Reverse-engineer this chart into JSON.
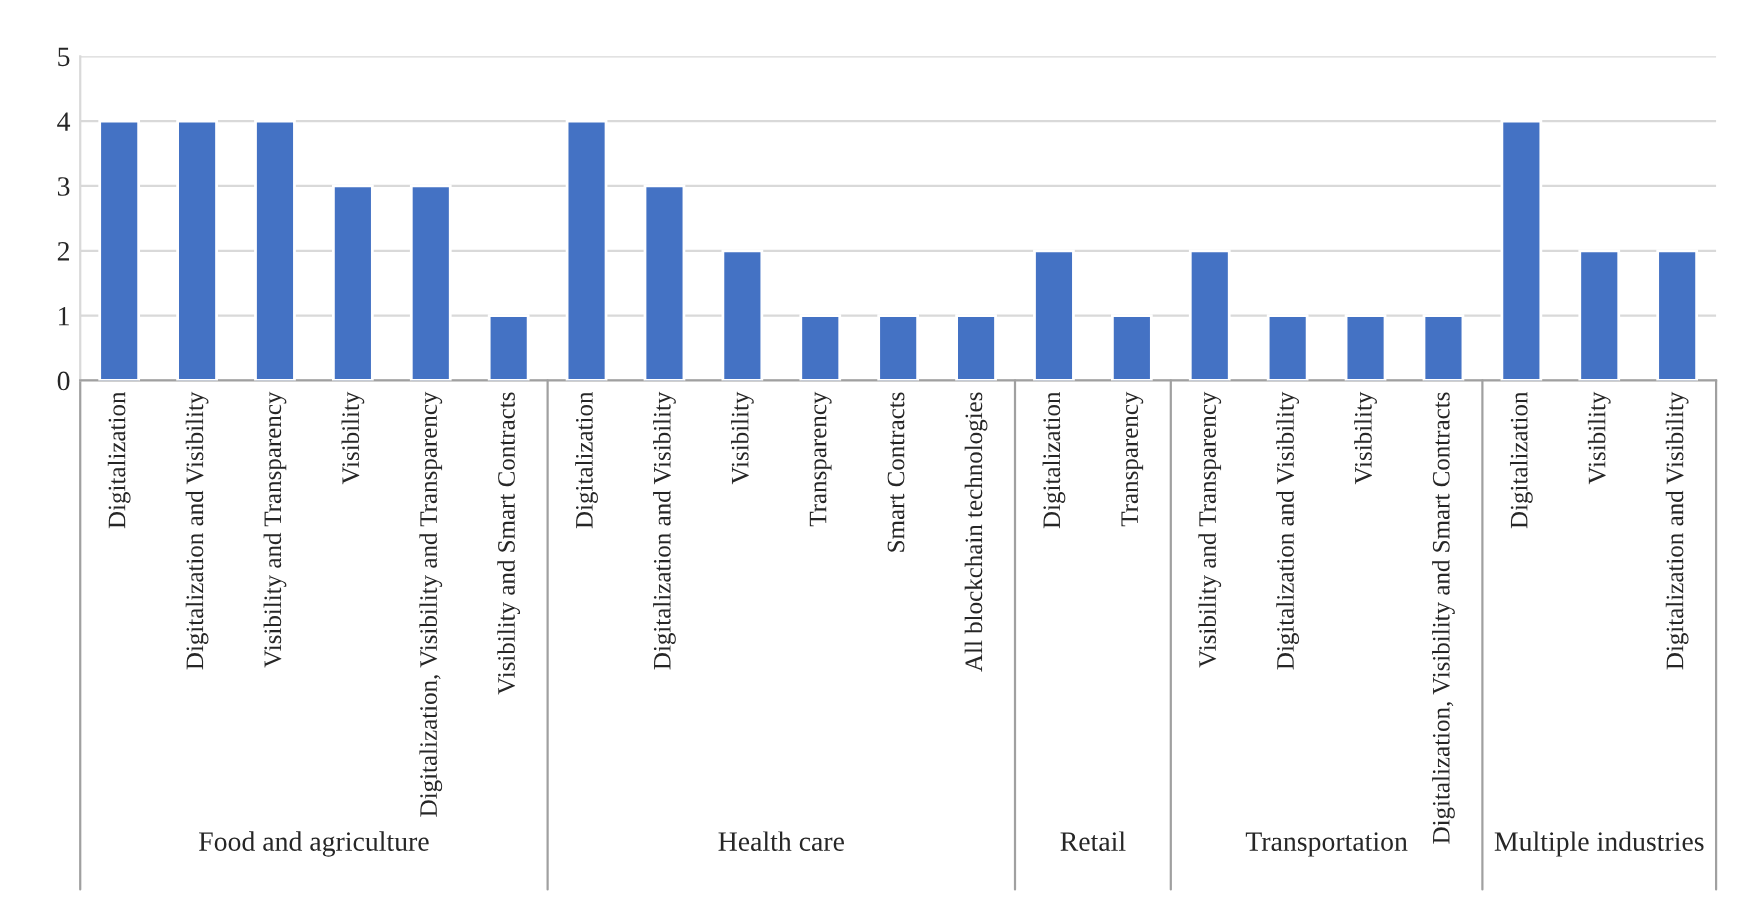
{
  "chart_data": {
    "type": "bar",
    "categories": [
      "Digitalization",
      "Digitalization and Visibility",
      "Visibility and Transparency",
      "Visibility",
      "Digitalization, Visibility and Transparency",
      "Visibility and Smart Contracts",
      "Digitalization",
      "Digitalization and Visibility",
      "Visibility",
      "Transparency",
      "Smart Contracts",
      "All blockchain technologies",
      "Digitalization",
      "Transparency",
      "Visibility and Transparency",
      "Digitalization and Visibility",
      "Visibility",
      "Digitalization, Visibility and Smart Contracts",
      "Digitalization",
      "Visibility",
      "Digitalization and Visibility"
    ],
    "values": [
      4,
      4,
      4,
      3,
      3,
      1,
      4,
      3,
      2,
      1,
      1,
      1,
      2,
      1,
      2,
      1,
      1,
      1,
      4,
      2,
      2
    ],
    "color": "#4472c4",
    "ylim": [
      0,
      5
    ],
    "yticks": [
      0,
      1,
      2,
      3,
      4,
      5
    ],
    "grid": "y",
    "legend": false,
    "annotations": [
      "Food and agriculture",
      "Health care",
      "Retail",
      "Transportation",
      "Multiple industries"
    ]
  }
}
